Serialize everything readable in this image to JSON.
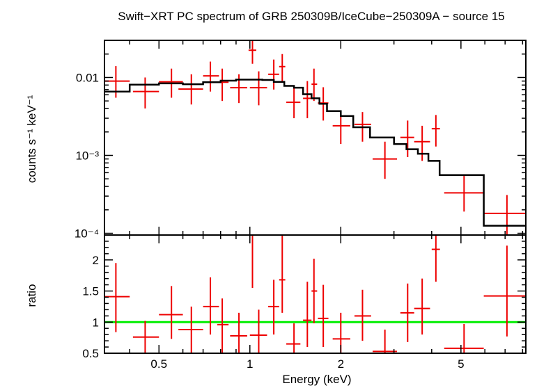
{
  "chart_data": {
    "title": "Swift−XRT PC spectrum of GRB 250309B/IceCube−250309A − source 15",
    "xlabel": "Energy (keV)",
    "x_scale": "log",
    "xlim": [
      0.33,
      8.2
    ],
    "x_ticks": [
      {
        "value": 0.5,
        "label": "0.5"
      },
      {
        "value": 1,
        "label": "1"
      },
      {
        "value": 2,
        "label": "2"
      },
      {
        "value": 5,
        "label": "5"
      }
    ],
    "panels": [
      {
        "type": "scatter",
        "ylabel": "counts s⁻¹ keV⁻¹",
        "y_scale": "log",
        "ylim": [
          9.5e-05,
          0.03
        ],
        "y_ticks": [
          {
            "value": 0.01,
            "label": "0.01"
          },
          {
            "value": 0.001,
            "label": "10⁻³"
          },
          {
            "value": 0.0001,
            "label": "10⁻⁴"
          }
        ],
        "series": [
          {
            "kind": "data",
            "color": "#ee0000",
            "points": [
              {
                "x": 0.36,
                "xlo": 0.33,
                "xhi": 0.4,
                "y": 0.009,
                "ylo": 0.0055,
                "yhi": 0.014
              },
              {
                "x": 0.45,
                "xlo": 0.41,
                "xhi": 0.5,
                "y": 0.0066,
                "ylo": 0.004,
                "yhi": 0.01
              },
              {
                "x": 0.55,
                "xlo": 0.5,
                "xhi": 0.6,
                "y": 0.0088,
                "ylo": 0.0055,
                "yhi": 0.013
              },
              {
                "x": 0.64,
                "xlo": 0.58,
                "xhi": 0.7,
                "y": 0.0071,
                "ylo": 0.0045,
                "yhi": 0.011
              },
              {
                "x": 0.74,
                "xlo": 0.7,
                "xhi": 0.79,
                "y": 0.0105,
                "ylo": 0.0066,
                "yhi": 0.016
              },
              {
                "x": 0.81,
                "xlo": 0.78,
                "xhi": 0.85,
                "y": 0.0087,
                "ylo": 0.005,
                "yhi": 0.013
              },
              {
                "x": 0.92,
                "xlo": 0.86,
                "xhi": 0.98,
                "y": 0.0074,
                "ylo": 0.0047,
                "yhi": 0.011
              },
              {
                "x": 1.07,
                "xlo": 1.0,
                "xhi": 1.14,
                "y": 0.0074,
                "ylo": 0.0044,
                "yhi": 0.012
              },
              {
                "x": 1.02,
                "xlo": 0.99,
                "xhi": 1.05,
                "y": 0.0224,
                "ylo": 0.015,
                "yhi": 0.03
              },
              {
                "x": 1.2,
                "xlo": 1.15,
                "xhi": 1.25,
                "y": 0.011,
                "ylo": 0.007,
                "yhi": 0.017
              },
              {
                "x": 1.28,
                "xlo": 1.25,
                "xhi": 1.31,
                "y": 0.0138,
                "ylo": 0.009,
                "yhi": 0.02
              },
              {
                "x": 1.4,
                "xlo": 1.32,
                "xhi": 1.47,
                "y": 0.0048,
                "ylo": 0.003,
                "yhi": 0.0075
              },
              {
                "x": 1.55,
                "xlo": 1.5,
                "xhi": 1.6,
                "y": 0.0054,
                "ylo": 0.003,
                "yhi": 0.009
              },
              {
                "x": 1.63,
                "xlo": 1.6,
                "xhi": 1.67,
                "y": 0.0082,
                "ylo": 0.005,
                "yhi": 0.013
              },
              {
                "x": 1.75,
                "xlo": 1.68,
                "xhi": 1.82,
                "y": 0.0047,
                "ylo": 0.0028,
                "yhi": 0.0075
              },
              {
                "x": 2.0,
                "xlo": 1.88,
                "xhi": 2.15,
                "y": 0.0024,
                "ylo": 0.0014,
                "yhi": 0.0038
              },
              {
                "x": 2.36,
                "xlo": 2.22,
                "xhi": 2.52,
                "y": 0.0025,
                "ylo": 0.0015,
                "yhi": 0.0036
              },
              {
                "x": 2.8,
                "xlo": 2.55,
                "xhi": 3.07,
                "y": 0.0009,
                "ylo": 0.0005,
                "yhi": 0.0015
              },
              {
                "x": 3.33,
                "xlo": 3.15,
                "xhi": 3.5,
                "y": 0.0017,
                "ylo": 0.00095,
                "yhi": 0.0028
              },
              {
                "x": 3.72,
                "xlo": 3.5,
                "xhi": 3.95,
                "y": 0.0015,
                "ylo": 0.00085,
                "yhi": 0.0024
              },
              {
                "x": 4.13,
                "xlo": 4.0,
                "xhi": 4.26,
                "y": 0.0022,
                "ylo": 0.0013,
                "yhi": 0.0033
              },
              {
                "x": 5.12,
                "xlo": 4.4,
                "xhi": 5.95,
                "y": 0.00033,
                "ylo": 0.00019,
                "yhi": 0.00056
              },
              {
                "x": 7.1,
                "xlo": 5.95,
                "xhi": 8.2,
                "y": 0.00018,
                "ylo": 9.5e-05,
                "yhi": 0.00031
              }
            ]
          },
          {
            "kind": "model-step",
            "color": "#000000",
            "edges": [
              0.33,
              0.4,
              0.5,
              0.6,
              0.7,
              0.8,
              0.9,
              1.0,
              1.1,
              1.2,
              1.3,
              1.4,
              1.5,
              1.6,
              1.7,
              1.8,
              2.0,
              2.2,
              2.5,
              3.0,
              3.3,
              3.6,
              3.9,
              4.25,
              5.95,
              8.2
            ],
            "values": [
              0.0066,
              0.0081,
              0.0084,
              0.0082,
              0.0087,
              0.0091,
              0.0094,
              0.0094,
              0.0093,
              0.0088,
              0.0078,
              0.0074,
              0.0061,
              0.0054,
              0.0046,
              0.0037,
              0.0032,
              0.0023,
              0.0017,
              0.0014,
              0.0012,
              0.00105,
              0.00085,
              0.00056,
              0.000125
            ]
          }
        ]
      },
      {
        "type": "scatter",
        "ylabel": "ratio",
        "y_scale": "linear",
        "ylim": [
          0.5,
          2.4
        ],
        "y_ticks": [
          {
            "value": 0.5,
            "label": "0.5"
          },
          {
            "value": 1,
            "label": "1"
          },
          {
            "value": 1.5,
            "label": "1.5"
          },
          {
            "value": 2,
            "label": "2"
          }
        ],
        "reference_line": {
          "y": 1,
          "color": "#00ee00"
        },
        "series": [
          {
            "kind": "data",
            "color": "#ee0000",
            "points": [
              {
                "x": 0.36,
                "xlo": 0.33,
                "xhi": 0.4,
                "y": 1.41,
                "ylo": 0.84,
                "yhi": 1.95
              },
              {
                "x": 0.45,
                "xlo": 0.41,
                "xhi": 0.5,
                "y": 0.76,
                "ylo": 0.5,
                "yhi": 1.02
              },
              {
                "x": 0.55,
                "xlo": 0.5,
                "xhi": 0.6,
                "y": 1.12,
                "ylo": 0.73,
                "yhi": 1.58
              },
              {
                "x": 0.64,
                "xlo": 0.58,
                "xhi": 0.7,
                "y": 0.88,
                "ylo": 0.5,
                "yhi": 1.25
              },
              {
                "x": 0.74,
                "xlo": 0.7,
                "xhi": 0.79,
                "y": 1.25,
                "ylo": 0.8,
                "yhi": 1.72
              },
              {
                "x": 0.81,
                "xlo": 0.78,
                "xhi": 0.85,
                "y": 0.96,
                "ylo": 0.5,
                "yhi": 1.38
              },
              {
                "x": 0.92,
                "xlo": 0.86,
                "xhi": 0.98,
                "y": 0.78,
                "ylo": 0.5,
                "yhi": 1.15
              },
              {
                "x": 1.02,
                "xlo": 0.99,
                "xhi": 1.05,
                "y": 2.4,
                "ylo": 1.55,
                "yhi": 2.4
              },
              {
                "x": 1.07,
                "xlo": 1.0,
                "xhi": 1.14,
                "y": 0.79,
                "ylo": 0.5,
                "yhi": 1.2
              },
              {
                "x": 1.2,
                "xlo": 1.15,
                "xhi": 1.25,
                "y": 1.25,
                "ylo": 0.8,
                "yhi": 1.68
              },
              {
                "x": 1.28,
                "xlo": 1.25,
                "xhi": 1.31,
                "y": 1.68,
                "ylo": 1.15,
                "yhi": 2.4
              },
              {
                "x": 1.4,
                "xlo": 1.32,
                "xhi": 1.47,
                "y": 0.65,
                "ylo": 0.5,
                "yhi": 0.98
              },
              {
                "x": 1.55,
                "xlo": 1.5,
                "xhi": 1.6,
                "y": 1.03,
                "ylo": 0.6,
                "yhi": 1.65
              },
              {
                "x": 1.63,
                "xlo": 1.6,
                "xhi": 1.67,
                "y": 1.5,
                "ylo": 0.98,
                "yhi": 2.02
              },
              {
                "x": 1.75,
                "xlo": 1.68,
                "xhi": 1.82,
                "y": 1.06,
                "ylo": 0.6,
                "yhi": 1.6
              },
              {
                "x": 2.0,
                "xlo": 1.88,
                "xhi": 2.15,
                "y": 0.73,
                "ylo": 0.5,
                "yhi": 1.15
              },
              {
                "x": 2.36,
                "xlo": 2.22,
                "xhi": 2.52,
                "y": 1.1,
                "ylo": 0.7,
                "yhi": 1.52
              },
              {
                "x": 2.8,
                "xlo": 2.55,
                "xhi": 3.07,
                "y": 0.53,
                "ylo": 0.5,
                "yhi": 0.88
              },
              {
                "x": 3.33,
                "xlo": 3.15,
                "xhi": 3.5,
                "y": 1.15,
                "ylo": 0.68,
                "yhi": 1.62
              },
              {
                "x": 3.72,
                "xlo": 3.5,
                "xhi": 3.95,
                "y": 1.22,
                "ylo": 0.8,
                "yhi": 1.7
              },
              {
                "x": 4.13,
                "xlo": 4.0,
                "xhi": 4.26,
                "y": 2.17,
                "ylo": 1.65,
                "yhi": 2.4
              },
              {
                "x": 5.12,
                "xlo": 4.4,
                "xhi": 5.95,
                "y": 0.58,
                "ylo": 0.5,
                "yhi": 0.97
              },
              {
                "x": 7.1,
                "xlo": 5.95,
                "xhi": 8.2,
                "y": 1.42,
                "ylo": 0.77,
                "yhi": 2.23
              }
            ]
          }
        ]
      }
    ]
  }
}
